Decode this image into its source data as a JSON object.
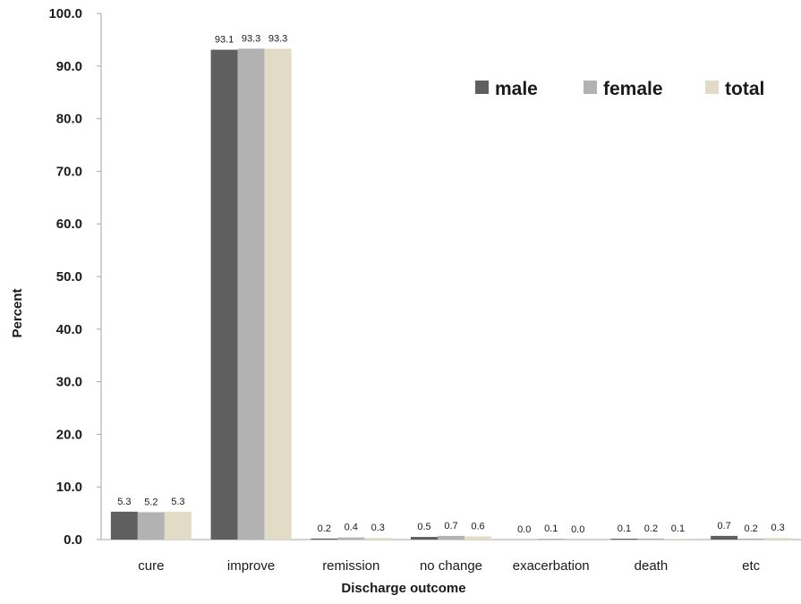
{
  "chart_data": {
    "type": "bar",
    "title": "",
    "xlabel": "Discharge outcome",
    "ylabel": "Percent",
    "ylim": [
      0,
      100
    ],
    "yticks": [
      "0.0",
      "10.0",
      "20.0",
      "30.0",
      "40.0",
      "50.0",
      "60.0",
      "70.0",
      "80.0",
      "90.0",
      "100.0"
    ],
    "categories": [
      "cure",
      "improve",
      "remission",
      "no change",
      "exacerbation",
      "death",
      "etc"
    ],
    "series": [
      {
        "name": "male",
        "color": "#5f5f5f",
        "values": [
          5.3,
          93.1,
          0.2,
          0.5,
          0.0,
          0.1,
          0.7
        ],
        "labels": [
          "5.3",
          "93.1",
          "0.2",
          "0.5",
          "0.0",
          "0.1",
          "0.7"
        ]
      },
      {
        "name": "female",
        "color": "#b2b2b2",
        "values": [
          5.2,
          93.3,
          0.4,
          0.7,
          0.1,
          0.2,
          0.2
        ],
        "labels": [
          "5.2",
          "93.3",
          "0.4",
          "0.7",
          "0.1",
          "0.2",
          "0.2"
        ]
      },
      {
        "name": "total",
        "color": "#e2dcc6",
        "values": [
          5.3,
          93.3,
          0.3,
          0.6,
          0.0,
          0.1,
          0.3
        ],
        "labels": [
          "5.3",
          "93.3",
          "0.3",
          "0.6",
          "0.0",
          "0.1",
          "0.3"
        ]
      }
    ],
    "grid": false,
    "legend": "top-right"
  }
}
